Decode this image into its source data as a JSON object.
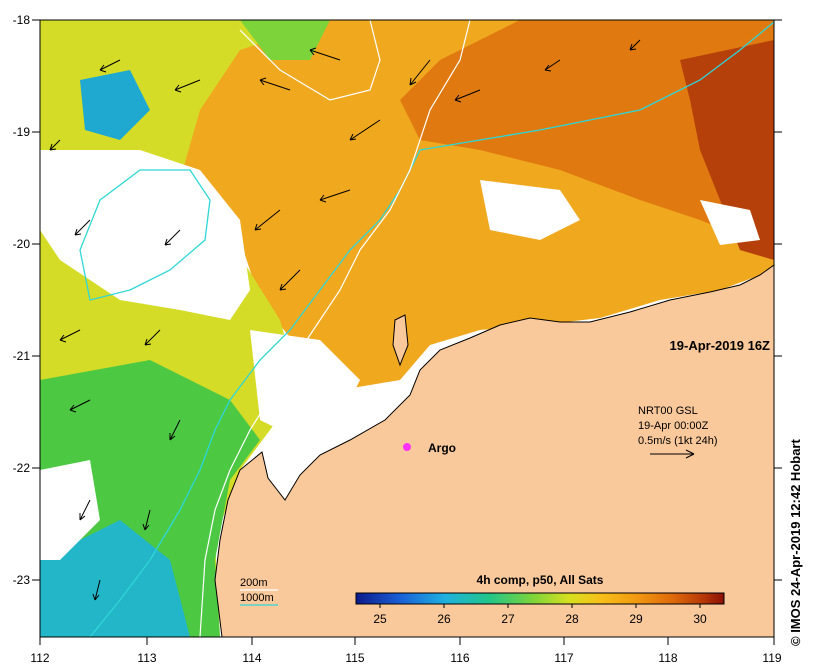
{
  "map": {
    "lon_ticks": [
      "112",
      "113",
      "114",
      "115",
      "116",
      "117",
      "118",
      "119"
    ],
    "lat_ticks": [
      "-18",
      "-19",
      "-20",
      "-21",
      "-22",
      "-23"
    ],
    "timestamp": "19-Apr-2019 16Z",
    "argo_label": "Argo",
    "current_legend": {
      "source": "NRT00 GSL",
      "date": "19-Apr 00:00Z",
      "scale": "0.5m/s (1kt 24h)"
    },
    "contour_legend": {
      "depth_200": "200m",
      "depth_1000": "1000m",
      "color_200": "#ffffff",
      "color_1000": "#2fd6d6"
    },
    "colorbar": {
      "title": "4h comp, p50, All Sats",
      "ticks": [
        "25",
        "26",
        "27",
        "28",
        "29",
        "30"
      ],
      "min": 24.5,
      "max": 30.3
    },
    "colors": {
      "land": "#f9c89b",
      "argo_marker": "#ff33ff",
      "coastline": "#000000"
    }
  },
  "credit": "© IMOS 24-Apr-2019 12:42 Hobart"
}
